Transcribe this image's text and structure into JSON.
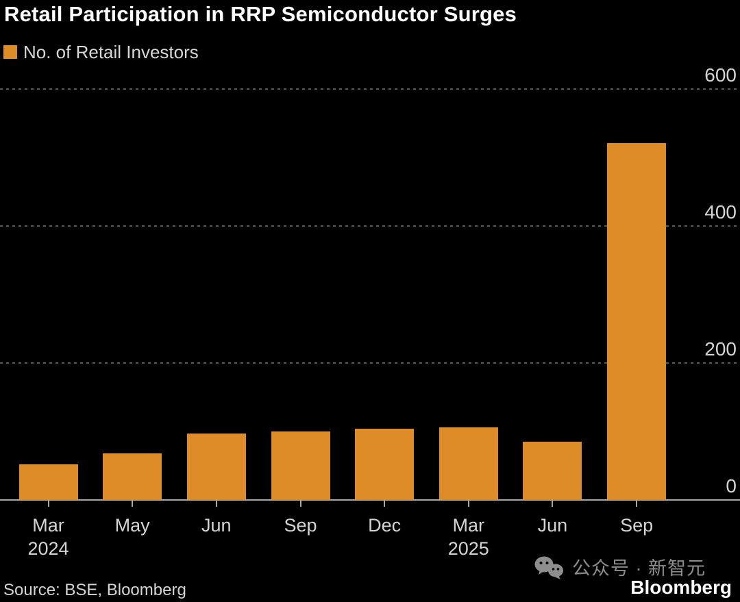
{
  "header": {
    "title": "Retail Participation in RRP Semiconductor Surges"
  },
  "legend": {
    "items": [
      {
        "label": "No. of Retail Investors",
        "color": "#dd8c27"
      }
    ]
  },
  "chart_data": {
    "type": "bar",
    "title": "Retail Participation in RRP Semiconductor Surges",
    "categories": [
      "Mar 2024",
      "May 2024",
      "Jun 2024",
      "Sep 2024",
      "Dec 2024",
      "Mar 2025",
      "Jun 2025",
      "Sep 2025"
    ],
    "x_tick_labels": [
      [
        "Mar",
        "2024"
      ],
      [
        "May"
      ],
      [
        "Jun"
      ],
      [
        "Sep"
      ],
      [
        "Dec"
      ],
      [
        "Mar",
        "2025"
      ],
      [
        "Jun"
      ],
      [
        "Sep"
      ]
    ],
    "series": [
      {
        "name": "No. of Retail Investors",
        "values": [
          52,
          68,
          97,
          100,
          104,
          106,
          85,
          521
        ]
      }
    ],
    "yticks": [
      0,
      200,
      400,
      600
    ],
    "ylim": [
      0,
      630
    ],
    "xlabel": "",
    "ylabel": "",
    "grid": "horizontal-dashed",
    "legend_position": "top-left",
    "y_axis_side": "right",
    "bar_color": "#dd8c27",
    "background_color": "#000000",
    "gridline_color": "#5a5a5a",
    "axis_line_color": "#a8a8a8",
    "text_color": "#d4d4d4"
  },
  "footer": {
    "source": "Source: BSE, Bloomberg",
    "brand": "Bloomberg",
    "watermark_text": "公众号 · 新智元",
    "watermark_icon": "wechat-icon"
  }
}
